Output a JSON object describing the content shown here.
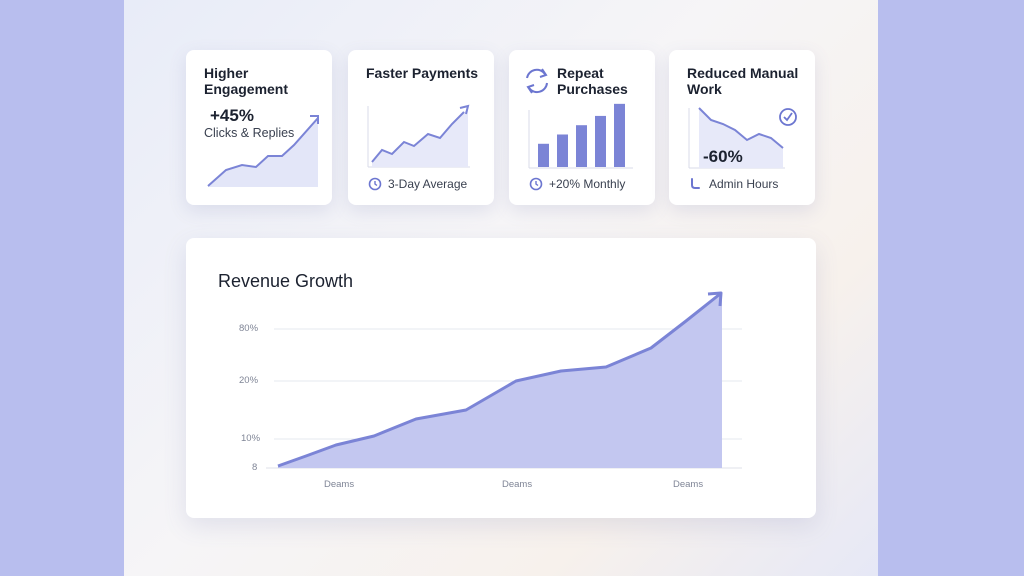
{
  "theme": {
    "accent": "#7b84d6",
    "area_fill": "#c3c7f0",
    "background_band": "#b8beee"
  },
  "cards": [
    {
      "title": "Higher Engagement",
      "value": "+45%",
      "subtitle": "Clicks & Replies",
      "icon": "trend-arrow-up-icon"
    },
    {
      "title": "Faster Payments",
      "footer": "3-Day Average",
      "footer_icon": "clock-icon"
    },
    {
      "title": "Repeat Purchases",
      "footer": "+20% Monthly",
      "title_icon": "refresh-cycle-icon",
      "footer_icon": "clock-icon"
    },
    {
      "title": "Reduced Manual Work",
      "value": "-60%",
      "footer": "Admin Hours",
      "title_icon": "check-circle-icon",
      "footer_icon": "wrench-icon"
    }
  ],
  "repeat_purchases_bars": [
    0.25,
    0.35,
    0.45,
    0.55,
    0.68
  ],
  "revenue": {
    "title": "Revenue Growth",
    "y_ticks": [
      "80%",
      "20%",
      "10%",
      "8"
    ],
    "x_ticks": [
      "Deams",
      "Deams",
      "Deams"
    ],
    "chart_data": {
      "type": "area",
      "title": "Revenue Growth",
      "y_tick_labels": [
        "8",
        "10%",
        "20%",
        "80%"
      ],
      "x_tick_labels": [
        "Deams",
        "Deams",
        "Deams"
      ],
      "grid": true,
      "trend": "increasing"
    }
  }
}
